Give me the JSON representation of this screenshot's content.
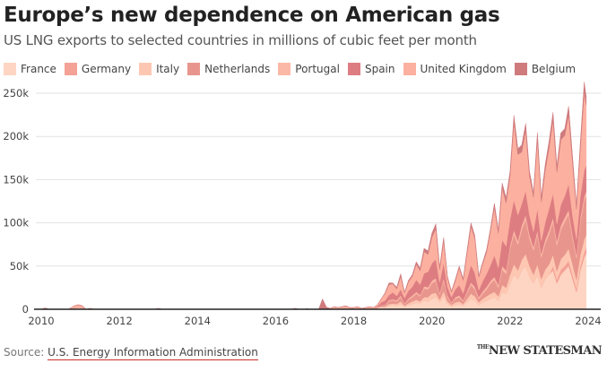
{
  "header": {
    "title": "Europe’s new dependence on American gas",
    "subtitle": "US LNG exports to selected countries in millions of cubic feet per month"
  },
  "footer": {
    "source_label": "Source:",
    "source_link": "U.S. Energy Information Administration",
    "brand_prefix": "THE",
    "brand": "NEW STATESMAN"
  },
  "chart_data": {
    "type": "area",
    "stacked": true,
    "title": "Europe’s new dependence on American gas",
    "subtitle": "US LNG exports to selected countries in millions of cubic feet per month",
    "xlabel": "",
    "ylabel": "",
    "xlim": [
      2010,
      2024
    ],
    "ylim": [
      0,
      250000
    ],
    "x_ticks": [
      "2010",
      "2012",
      "2014",
      "2016",
      "2018",
      "2020",
      "2022",
      "2024"
    ],
    "y_ticks": [
      "0",
      "50k",
      "100k",
      "150k",
      "200k",
      "250k"
    ],
    "grid": true,
    "legend_position": "top-left",
    "x": [
      2010.0,
      2010.1,
      2010.2,
      2010.7,
      2010.85,
      2010.95,
      2011.05,
      2011.15,
      2011.25,
      2011.35,
      2012.9,
      2013.0,
      2013.1,
      2016.0,
      2016.1,
      2016.2,
      2016.3,
      2016.4,
      2016.5,
      2016.6,
      2016.7,
      2016.8,
      2016.9,
      2017.0,
      2017.1,
      2017.2,
      2017.3,
      2017.4,
      2017.5,
      2017.6,
      2017.7,
      2017.8,
      2017.9,
      2018.0,
      2018.1,
      2018.2,
      2018.3,
      2018.4,
      2018.5,
      2018.6,
      2018.7,
      2018.8,
      2018.9,
      2019.0,
      2019.1,
      2019.2,
      2019.3,
      2019.4,
      2019.5,
      2019.6,
      2019.7,
      2019.8,
      2019.9,
      2020.0,
      2020.1,
      2020.2,
      2020.3,
      2020.4,
      2020.5,
      2020.6,
      2020.7,
      2020.8,
      2020.9,
      2021.0,
      2021.1,
      2021.2,
      2021.3,
      2021.4,
      2021.5,
      2021.6,
      2021.7,
      2021.8,
      2021.9,
      2022.0,
      2022.1,
      2022.2,
      2022.3,
      2022.4,
      2022.5,
      2022.6,
      2022.7,
      2022.8,
      2022.9,
      2023.0,
      2023.1,
      2023.2,
      2023.3,
      2023.4,
      2023.5,
      2023.6,
      2023.7,
      2023.8,
      2023.9,
      2023.95
    ],
    "series": [
      {
        "name": "France",
        "color": "#fdd5c2",
        "values": [
          0,
          0,
          0,
          0,
          1000,
          1500,
          1000,
          0,
          0,
          0,
          0,
          0,
          0,
          0,
          0,
          0,
          0,
          0,
          0,
          0,
          0,
          0,
          0,
          0,
          0,
          0,
          0,
          0,
          0,
          0,
          0,
          0,
          0,
          0,
          0,
          0,
          0,
          0,
          0,
          2000,
          3000,
          2000,
          4000,
          5000,
          4000,
          6000,
          3000,
          5000,
          6000,
          8000,
          7000,
          10000,
          9000,
          12000,
          14000,
          8000,
          15000,
          6000,
          3000,
          5000,
          6000,
          4000,
          8000,
          12000,
          10000,
          5000,
          8000,
          10000,
          12000,
          14000,
          10000,
          20000,
          18000,
          30000,
          40000,
          35000,
          45000,
          50000,
          38000,
          30000,
          40000,
          25000,
          35000,
          40000,
          45000,
          30000,
          40000,
          45000,
          50000,
          35000,
          20000,
          45000,
          60000,
          65000
        ]
      },
      {
        "name": "Germany",
        "color": "#f4a196",
        "values": [
          0,
          0,
          0,
          0,
          0,
          0,
          0,
          0,
          0,
          0,
          0,
          0,
          0,
          0,
          0,
          0,
          0,
          0,
          0,
          0,
          0,
          0,
          0,
          0,
          0,
          0,
          0,
          0,
          0,
          0,
          0,
          0,
          0,
          0,
          0,
          0,
          0,
          0,
          0,
          0,
          0,
          0,
          0,
          0,
          0,
          0,
          0,
          0,
          0,
          0,
          0,
          0,
          0,
          0,
          0,
          0,
          0,
          0,
          0,
          0,
          0,
          0,
          0,
          0,
          0,
          0,
          0,
          0,
          0,
          0,
          0,
          0,
          0,
          0,
          0,
          0,
          0,
          0,
          0,
          0,
          0,
          0,
          0,
          0,
          5000,
          4000,
          6000,
          5000,
          6000,
          5000,
          4000,
          5000,
          6000,
          6000
        ]
      },
      {
        "name": "Italy",
        "color": "#fec7b2",
        "values": [
          0,
          0,
          0,
          0,
          500,
          800,
          500,
          0,
          0,
          0,
          0,
          0,
          0,
          0,
          0,
          0,
          0,
          0,
          0,
          0,
          0,
          0,
          0,
          0,
          0,
          0,
          0,
          0,
          0,
          0,
          0,
          0,
          0,
          0,
          0,
          0,
          0,
          0,
          0,
          0,
          0,
          1000,
          2000,
          1500,
          2000,
          3000,
          1000,
          2000,
          3000,
          3000,
          2000,
          4000,
          5000,
          6000,
          5000,
          3000,
          6000,
          3000,
          2000,
          3000,
          3000,
          2000,
          4000,
          6000,
          5000,
          3000,
          4000,
          5000,
          6000,
          6000,
          5000,
          8000,
          7000,
          10000,
          12000,
          10000,
          12000,
          14000,
          12000,
          10000,
          12000,
          10000,
          11000,
          12000,
          13000,
          10000,
          12000,
          13000,
          14000,
          12000,
          10000,
          13000,
          15000,
          15000
        ]
      },
      {
        "name": "Netherlands",
        "color": "#e8968d",
        "values": [
          0,
          0,
          0,
          0,
          0,
          0,
          0,
          0,
          0,
          0,
          0,
          0,
          0,
          0,
          0,
          0,
          0,
          0,
          0,
          0,
          0,
          0,
          0,
          0,
          0,
          0,
          0,
          0,
          0,
          0,
          0,
          0,
          0,
          0,
          0,
          0,
          0,
          0,
          0,
          0,
          2000,
          1000,
          3000,
          4000,
          3000,
          5000,
          2000,
          4000,
          5000,
          7000,
          6000,
          10000,
          9000,
          12000,
          14000,
          6000,
          12000,
          5000,
          2000,
          4000,
          5000,
          3000,
          7000,
          10000,
          8000,
          4000,
          6000,
          8000,
          12000,
          14000,
          10000,
          18000,
          16000,
          30000,
          35000,
          30000,
          35000,
          40000,
          32000,
          28000,
          35000,
          25000,
          30000,
          35000,
          38000,
          30000,
          34000,
          38000,
          40000,
          30000,
          25000,
          38000,
          45000,
          45000
        ]
      },
      {
        "name": "Portugal",
        "color": "#fcb8a6",
        "values": [
          0,
          0,
          0,
          0,
          0,
          0,
          0,
          0,
          0,
          0,
          0,
          0,
          0,
          0,
          0,
          0,
          0,
          0,
          0,
          0,
          0,
          0,
          0,
          0,
          0,
          0,
          0,
          0,
          0,
          0,
          0,
          0,
          0,
          0,
          0,
          0,
          0,
          0,
          0,
          0,
          0,
          1000,
          1500,
          1000,
          1500,
          2000,
          1000,
          1500,
          2000,
          2000,
          1500,
          2500,
          2500,
          3000,
          3000,
          2000,
          3000,
          2000,
          1000,
          2000,
          2000,
          1500,
          2000,
          3000,
          3000,
          2000,
          2500,
          3000,
          3000,
          3500,
          3000,
          4000,
          4000,
          4000,
          4500,
          4000,
          5000,
          5000,
          4500,
          4000,
          4500,
          4000,
          4500,
          4500,
          5000,
          4500,
          5000,
          5000,
          5000,
          4500,
          4000,
          5000,
          5000,
          5000
        ]
      },
      {
        "name": "Spain",
        "color": "#dd7d82",
        "values": [
          0,
          1500,
          0,
          0,
          0,
          0,
          0,
          0,
          1000,
          0,
          0,
          0,
          0,
          0,
          0,
          0,
          0,
          0,
          0,
          0,
          0,
          0,
          0,
          0,
          0,
          0,
          0,
          0,
          0,
          0,
          0,
          0,
          0,
          0,
          0,
          0,
          0,
          0,
          0,
          1000,
          3000,
          5000,
          6000,
          8000,
          5000,
          7000,
          6000,
          9000,
          10000,
          14000,
          12000,
          15000,
          18000,
          20000,
          22000,
          12000,
          18000,
          10000,
          6000,
          9000,
          12000,
          8000,
          14000,
          20000,
          16000,
          8000,
          12000,
          15000,
          18000,
          25000,
          20000,
          30000,
          28000,
          30000,
          35000,
          30000,
          25000,
          28000,
          22000,
          18000,
          25000,
          15000,
          20000,
          25000,
          28000,
          20000,
          24000,
          25000,
          30000,
          22000,
          18000,
          25000,
          30000,
          30000
        ]
      },
      {
        "name": "United Kingdom",
        "color": "#fcb09f",
        "values": [
          0,
          0,
          0,
          0,
          2500,
          3000,
          2500,
          0,
          0,
          0,
          0,
          1000,
          0,
          0,
          0,
          0,
          0,
          0,
          1000,
          0,
          0,
          500,
          0,
          0,
          0,
          0,
          500,
          1000,
          3000,
          2000,
          3000,
          4000,
          2000,
          2000,
          3000,
          1000,
          2000,
          3000,
          2000,
          2000,
          4000,
          8000,
          12000,
          10000,
          8000,
          15000,
          6000,
          10000,
          12000,
          18000,
          16000,
          25000,
          20000,
          30000,
          35000,
          15000,
          25000,
          10000,
          6000,
          10000,
          20000,
          15000,
          30000,
          45000,
          40000,
          15000,
          20000,
          25000,
          40000,
          55000,
          40000,
          60000,
          50000,
          50000,
          90000,
          70000,
          60000,
          70000,
          45000,
          40000,
          80000,
          45000,
          60000,
          70000,
          85000,
          60000,
          75000,
          70000,
          80000,
          60000,
          35000,
          55000,
          90000,
          70000
        ]
      },
      {
        "name": "Belgium",
        "color": "#cf7b7e",
        "values": [
          0,
          0,
          0,
          0,
          0,
          0,
          0,
          0,
          0,
          0,
          0,
          0,
          0,
          0,
          0,
          0,
          0,
          0,
          0,
          0,
          0,
          0,
          0,
          0,
          0,
          12000,
          2000,
          0,
          0,
          0,
          0,
          0,
          0,
          0,
          0,
          0,
          0,
          0,
          0,
          0,
          0,
          1000,
          2000,
          1000,
          2000,
          3000,
          1000,
          2000,
          2000,
          3000,
          3000,
          4000,
          4000,
          5000,
          6000,
          3000,
          4000,
          2000,
          1000,
          2000,
          2000,
          2000,
          3000,
          4000,
          3000,
          2000,
          2000,
          3000,
          3000,
          5000,
          4000,
          6000,
          6000,
          6000,
          8000,
          7000,
          8000,
          8000,
          6000,
          5000,
          8000,
          6000,
          7000,
          8000,
          9000,
          7000,
          8000,
          8000,
          10000,
          8000,
          5000,
          8000,
          12000,
          10000
        ]
      }
    ]
  }
}
